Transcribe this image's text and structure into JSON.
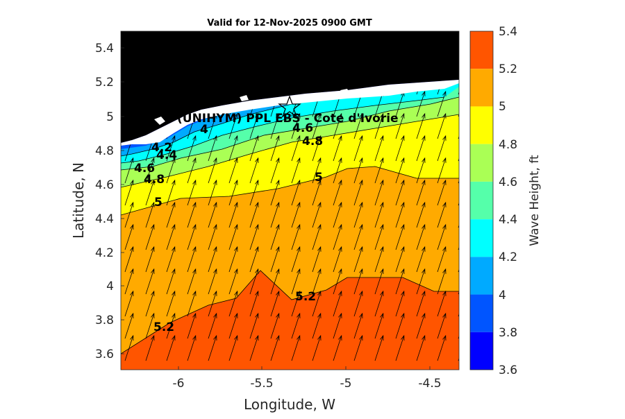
{
  "title": "Valid for 12-Nov-2025 0900 GMT",
  "station_label": "(UNIHYM) PPL EBS - Cote d'Ivorie",
  "xaxis": {
    "label": "Longitude, W",
    "ticks": [
      "-6",
      "-5.5",
      "-5",
      "-4.5"
    ]
  },
  "yaxis": {
    "label": "Latitude, N",
    "ticks": [
      "5.4",
      "5.2",
      "5",
      "4.8",
      "4.6",
      "4.4",
      "4.2",
      "4",
      "3.8",
      "3.6"
    ]
  },
  "colorbar": {
    "label": "Wave Height, ft",
    "ticks": [
      "5.4",
      "5.2",
      "5",
      "4.8",
      "4.6",
      "4.4",
      "4.2",
      "4",
      "3.8",
      "3.6"
    ],
    "levels": [
      {
        "from": 5.2,
        "to": 5.4,
        "color": "#ff5500"
      },
      {
        "from": 5.0,
        "to": 5.2,
        "color": "#ffaa00"
      },
      {
        "from": 4.8,
        "to": 5.0,
        "color": "#ffff00"
      },
      {
        "from": 4.6,
        "to": 4.8,
        "color": "#aaff55"
      },
      {
        "from": 4.4,
        "to": 4.6,
        "color": "#55ffaa"
      },
      {
        "from": 4.2,
        "to": 4.4,
        "color": "#00ffff"
      },
      {
        "from": 4.0,
        "to": 4.2,
        "color": "#00aaff"
      },
      {
        "from": 3.8,
        "to": 4.0,
        "color": "#0055ff"
      },
      {
        "from": 3.6,
        "to": 3.8,
        "color": "#0000ff"
      }
    ]
  },
  "contour_labels": [
    "4",
    "4.2",
    "4.4",
    "4.6",
    "4.8",
    "5",
    "4.6",
    "4.8",
    "5",
    "5.2",
    "5.2"
  ],
  "colors": {
    "land": "#000000",
    "coast": "#ffffff",
    "arrow": "#000000"
  }
}
